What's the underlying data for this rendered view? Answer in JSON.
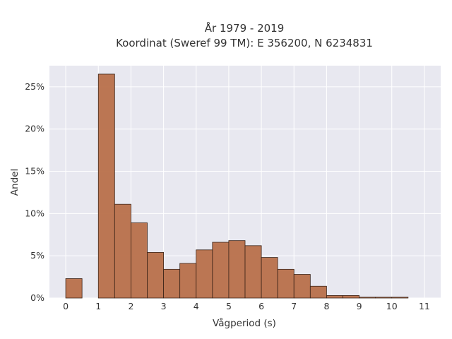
{
  "chart_data": {
    "type": "bar",
    "title_line1": "År 1979 - 2019",
    "title_line2": "Koordinat (Sweref 99 TM): E 356200, N 6234831",
    "xlabel": "Vågperiod (s)",
    "ylabel": "Andel",
    "xlim": [
      -0.5,
      11.5
    ],
    "ylim": [
      0,
      27.5
    ],
    "x_ticks": [
      0,
      1,
      2,
      3,
      4,
      5,
      6,
      7,
      8,
      9,
      10,
      11
    ],
    "x_tick_labels": [
      "0",
      "1",
      "2",
      "3",
      "4",
      "5",
      "6",
      "7",
      "8",
      "9",
      "10",
      "11"
    ],
    "y_ticks": [
      0,
      5,
      10,
      15,
      20,
      25
    ],
    "y_tick_labels": [
      "0%",
      "5%",
      "10%",
      "15%",
      "20%",
      "25%"
    ],
    "bin_width": 0.5,
    "bins": [
      {
        "start": 0.0,
        "value": 2.3
      },
      {
        "start": 0.5,
        "value": 0.0
      },
      {
        "start": 1.0,
        "value": 26.5
      },
      {
        "start": 1.5,
        "value": 11.1
      },
      {
        "start": 2.0,
        "value": 8.9
      },
      {
        "start": 2.5,
        "value": 5.4
      },
      {
        "start": 3.0,
        "value": 3.4
      },
      {
        "start": 3.5,
        "value": 4.1
      },
      {
        "start": 4.0,
        "value": 5.7
      },
      {
        "start": 4.5,
        "value": 6.6
      },
      {
        "start": 5.0,
        "value": 6.8
      },
      {
        "start": 5.5,
        "value": 6.2
      },
      {
        "start": 6.0,
        "value": 4.8
      },
      {
        "start": 6.5,
        "value": 3.4
      },
      {
        "start": 7.0,
        "value": 2.8
      },
      {
        "start": 7.5,
        "value": 1.4
      },
      {
        "start": 8.0,
        "value": 0.3
      },
      {
        "start": 8.5,
        "value": 0.3
      },
      {
        "start": 9.0,
        "value": 0.1
      },
      {
        "start": 9.5,
        "value": 0.1
      },
      {
        "start": 10.0,
        "value": 0.1
      },
      {
        "start": 10.5,
        "value": 0.0
      }
    ],
    "bar_color": "#b8704a",
    "bar_edge_color": "#3b2418",
    "plot_background": "#e8e8f0",
    "grid_color": "#ffffff",
    "grid": true
  }
}
